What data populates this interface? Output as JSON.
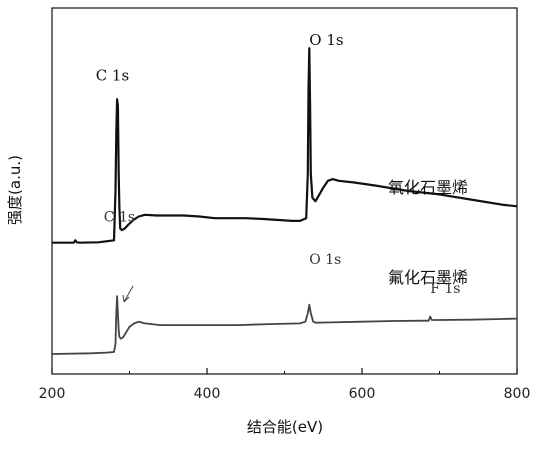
{
  "chart_data": {
    "type": "line",
    "xlabel": "结合能(eV)",
    "ylabel": "强度(a.u.)",
    "xlim": [
      200,
      800
    ],
    "xticks": [
      200,
      400,
      600,
      800
    ],
    "ylim": [
      0,
      1
    ],
    "series": [
      {
        "name": "氧化石墨烯",
        "color": "#111111",
        "x": [
          200,
          228,
          230,
          232,
          236,
          260,
          280,
          282,
          283,
          284,
          285,
          286,
          287,
          288,
          290,
          294,
          298,
          305,
          312,
          320,
          335,
          350,
          370,
          390,
          410,
          430,
          450,
          470,
          490,
          510,
          520,
          528,
          530,
          531,
          532,
          533,
          534,
          536,
          540,
          545,
          550,
          556,
          562,
          570,
          590,
          620,
          660,
          700,
          740,
          780,
          800
        ],
        "y": [
          0.398,
          0.398,
          0.405,
          0.399,
          0.398,
          0.399,
          0.405,
          0.55,
          0.72,
          0.82,
          0.8,
          0.6,
          0.5,
          0.44,
          0.435,
          0.44,
          0.45,
          0.465,
          0.475,
          0.48,
          0.478,
          0.478,
          0.478,
          0.475,
          0.47,
          0.47,
          0.47,
          0.468,
          0.465,
          0.462,
          0.462,
          0.47,
          0.6,
          0.85,
          0.97,
          0.8,
          0.6,
          0.53,
          0.52,
          0.54,
          0.56,
          0.58,
          0.585,
          0.58,
          0.575,
          0.565,
          0.55,
          0.54,
          0.525,
          0.51,
          0.505
        ]
      },
      {
        "name": "氟化石墨烯",
        "color": "#444444",
        "x": [
          200,
          250,
          270,
          280,
          282,
          283,
          284,
          285,
          286,
          287,
          289,
          292,
          296,
          300,
          306,
          312,
          320,
          340,
          370,
          400,
          440,
          480,
          520,
          527,
          530,
          532,
          534,
          537,
          540,
          560,
          600,
          640,
          680,
          686,
          688,
          690,
          700,
          740,
          780,
          800
        ],
        "y": [
          0.0,
          0.002,
          0.004,
          0.006,
          0.03,
          0.12,
          0.17,
          0.12,
          0.07,
          0.05,
          0.045,
          0.05,
          0.065,
          0.08,
          0.09,
          0.095,
          0.09,
          0.085,
          0.085,
          0.085,
          0.085,
          0.088,
          0.09,
          0.095,
          0.12,
          0.145,
          0.12,
          0.095,
          0.092,
          0.093,
          0.095,
          0.097,
          0.098,
          0.098,
          0.11,
          0.1,
          0.1,
          0.101,
          0.103,
          0.104
        ]
      }
    ],
    "annotations": [
      {
        "text": "C 1s",
        "x": 278,
        "series": 0,
        "dy": 0.055
      },
      {
        "text": "O 1s",
        "x": 532,
        "series": 0,
        "dy": 0.01
      },
      {
        "text": "C 1s",
        "x": 287,
        "series": 1,
        "dy": 0.22
      },
      {
        "text": "O 1s",
        "x": 532,
        "series": 1,
        "dy": 0.12
      },
      {
        "text": "F 1s",
        "x": 688,
        "series": 1,
        "dy": 0.07
      }
    ]
  }
}
